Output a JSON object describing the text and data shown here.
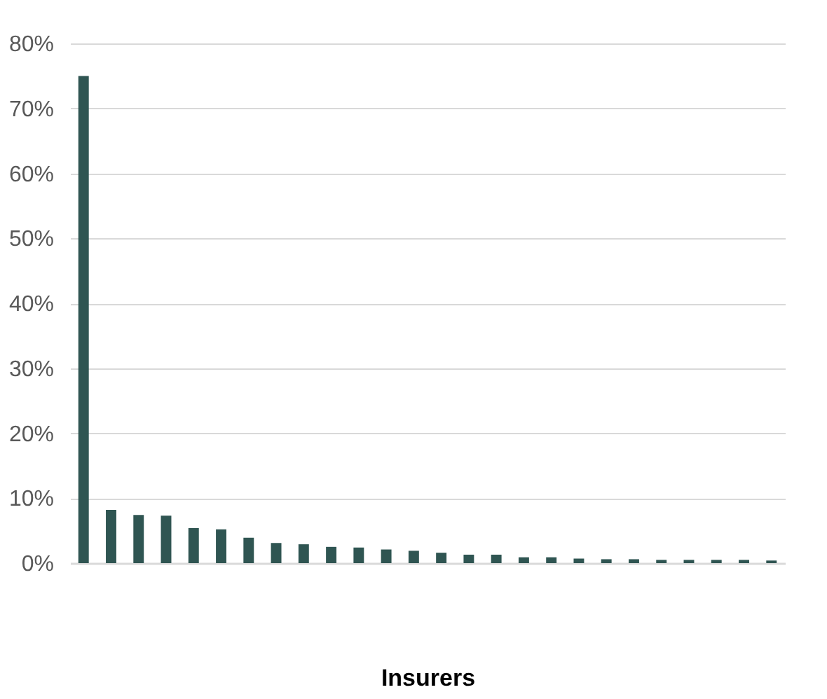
{
  "chart_data": {
    "type": "bar",
    "xlabel": "Insurers",
    "categories": [
      null,
      null,
      null,
      null,
      null,
      null,
      null,
      null,
      null,
      null,
      null,
      null,
      null,
      null,
      null,
      null,
      null,
      null,
      null,
      null,
      null,
      null,
      null,
      null,
      null,
      null
    ],
    "values": [
      75,
      8.2,
      7.4,
      7.3,
      5.4,
      5.2,
      3.9,
      3.1,
      2.9,
      2.5,
      2.4,
      2.1,
      1.9,
      1.6,
      1.3,
      1.3,
      0.9,
      0.9,
      0.7,
      0.6,
      0.6,
      0.5,
      0.5,
      0.5,
      0.5,
      0.4
    ],
    "color": "#2f5552",
    "ylim": [
      0,
      80
    ],
    "yticks": [
      {
        "value": 0,
        "label": "0%"
      },
      {
        "value": 10,
        "label": "10%"
      },
      {
        "value": 20,
        "label": "20%"
      },
      {
        "value": 30,
        "label": "30%"
      },
      {
        "value": 40,
        "label": "40%"
      },
      {
        "value": 50,
        "label": "50%"
      },
      {
        "value": 60,
        "label": "60%"
      },
      {
        "value": 70,
        "label": "70%"
      },
      {
        "value": 80,
        "label": "80%"
      }
    ],
    "grid": "y"
  }
}
